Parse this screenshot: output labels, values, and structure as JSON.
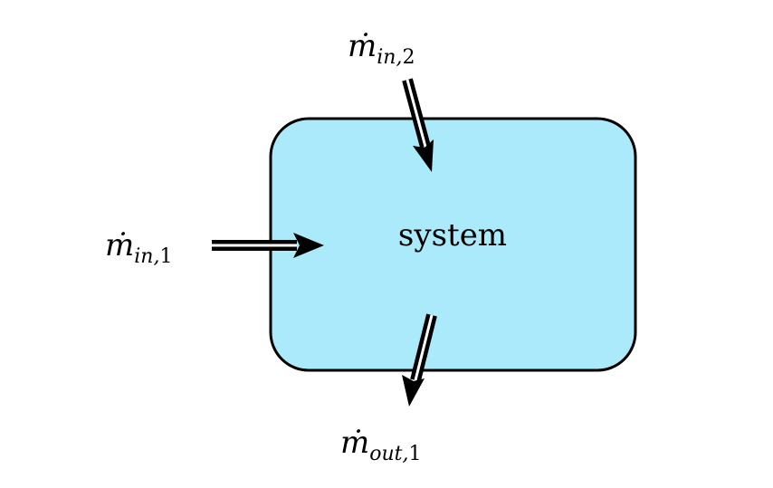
{
  "diagram": {
    "system_label": "system",
    "colors": {
      "system_fill": "#aaeafb",
      "system_stroke": "#000000",
      "arrow": "#000000",
      "background": "#ffffff"
    },
    "flows": [
      {
        "id": "in-1",
        "direction": "inflow",
        "symbol": "ṁ",
        "subscript": "in,",
        "index": "1"
      },
      {
        "id": "in-2",
        "direction": "inflow",
        "symbol": "ṁ",
        "subscript": "in,",
        "index": "2"
      },
      {
        "id": "out-1",
        "direction": "outflow",
        "symbol": "ṁ",
        "subscript": "out,",
        "index": "1"
      }
    ]
  }
}
